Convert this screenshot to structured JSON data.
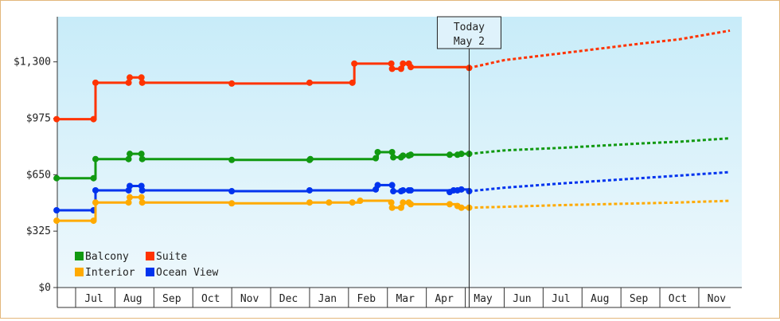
{
  "chart_data": {
    "type": "line",
    "today": {
      "line1": "Today",
      "line2": "May 2"
    },
    "y_ticks": [
      {
        "value": 0,
        "label": "$0"
      },
      {
        "value": 325,
        "label": "$325"
      },
      {
        "value": 650,
        "label": "$650"
      },
      {
        "value": 975,
        "label": "$975"
      },
      {
        "value": 1300,
        "label": "$1,300"
      }
    ],
    "ylim": [
      0,
      1560
    ],
    "x_months": [
      "Jul",
      "Aug",
      "Sep",
      "Oct",
      "Nov",
      "Dec",
      "Jan",
      "Feb",
      "Mar",
      "Apr",
      "May",
      "Jun",
      "Jul",
      "Aug",
      "Sep",
      "Oct",
      "Nov"
    ],
    "legend_placement": "bottom-left",
    "grid": false,
    "series": [
      {
        "name": "Suite",
        "color": "#ff3300",
        "points": [
          [
            -1,
            970
          ],
          [
            -0.05,
            970
          ],
          [
            0,
            1180
          ],
          [
            0.85,
            1180
          ],
          [
            0.88,
            1210
          ],
          [
            1.18,
            1210
          ],
          [
            1.2,
            1180
          ],
          [
            3.5,
            1175
          ],
          [
            5.5,
            1180
          ],
          [
            6.6,
            1180
          ],
          [
            6.65,
            1290
          ],
          [
            7.6,
            1290
          ],
          [
            7.62,
            1260
          ],
          [
            7.85,
            1260
          ],
          [
            7.9,
            1290
          ],
          [
            8.05,
            1290
          ],
          [
            8.1,
            1270
          ],
          [
            9.6,
            1265
          ]
        ],
        "forecast": [
          [
            9.6,
            1265
          ],
          [
            10.5,
            1310
          ],
          [
            12,
            1350
          ],
          [
            14,
            1405
          ],
          [
            15,
            1430
          ],
          [
            16.3,
            1480
          ]
        ]
      },
      {
        "name": "Balcony",
        "color": "#119911",
        "points": [
          [
            -1,
            630
          ],
          [
            -0.05,
            630
          ],
          [
            0,
            740
          ],
          [
            0.85,
            740
          ],
          [
            0.88,
            770
          ],
          [
            1.18,
            770
          ],
          [
            1.2,
            740
          ],
          [
            3.5,
            735
          ],
          [
            5.5,
            735
          ],
          [
            5.52,
            740
          ],
          [
            7.2,
            745
          ],
          [
            7.25,
            780
          ],
          [
            7.62,
            780
          ],
          [
            7.65,
            750
          ],
          [
            7.85,
            750
          ],
          [
            7.9,
            760
          ],
          [
            8.05,
            760
          ],
          [
            8.1,
            765
          ],
          [
            9.1,
            765
          ],
          [
            9.3,
            765
          ],
          [
            9.4,
            770
          ],
          [
            9.6,
            770
          ]
        ],
        "forecast": [
          [
            9.6,
            770
          ],
          [
            10.5,
            790
          ],
          [
            12,
            805
          ],
          [
            14,
            830
          ],
          [
            15,
            840
          ],
          [
            16.3,
            860
          ]
        ]
      },
      {
        "name": "Ocean View",
        "color": "#0033ee",
        "points": [
          [
            -1,
            445
          ],
          [
            -0.05,
            445
          ],
          [
            0,
            560
          ],
          [
            0.85,
            560
          ],
          [
            0.88,
            585
          ],
          [
            1.18,
            585
          ],
          [
            1.2,
            560
          ],
          [
            3.5,
            555
          ],
          [
            5.5,
            560
          ],
          [
            7.2,
            565
          ],
          [
            7.25,
            590
          ],
          [
            7.62,
            590
          ],
          [
            7.65,
            555
          ],
          [
            7.85,
            555
          ],
          [
            7.9,
            560
          ],
          [
            8.05,
            560
          ],
          [
            8.1,
            560
          ],
          [
            9.1,
            550
          ],
          [
            9.2,
            560
          ],
          [
            9.3,
            560
          ],
          [
            9.4,
            565
          ],
          [
            9.6,
            555
          ]
        ],
        "forecast": [
          [
            9.6,
            555
          ],
          [
            10.5,
            575
          ],
          [
            12,
            600
          ],
          [
            14,
            630
          ],
          [
            15,
            645
          ],
          [
            16.3,
            665
          ]
        ]
      },
      {
        "name": "Interior",
        "color": "#ffaa00",
        "points": [
          [
            -1,
            385
          ],
          [
            -0.05,
            385
          ],
          [
            0,
            490
          ],
          [
            0.85,
            490
          ],
          [
            0.88,
            520
          ],
          [
            1.18,
            520
          ],
          [
            1.2,
            490
          ],
          [
            3.5,
            485
          ],
          [
            5.5,
            490
          ],
          [
            6.0,
            490
          ],
          [
            6.6,
            490
          ],
          [
            6.8,
            500
          ],
          [
            7.6,
            490
          ],
          [
            7.62,
            460
          ],
          [
            7.85,
            460
          ],
          [
            7.9,
            490
          ],
          [
            8.05,
            490
          ],
          [
            8.1,
            480
          ],
          [
            9.1,
            480
          ],
          [
            9.3,
            470
          ],
          [
            9.4,
            460
          ],
          [
            9.6,
            460
          ]
        ],
        "forecast": [
          [
            9.6,
            460
          ],
          [
            10.5,
            465
          ],
          [
            12,
            475
          ],
          [
            14,
            485
          ],
          [
            15,
            490
          ],
          [
            16.3,
            500
          ]
        ]
      }
    ],
    "legend": [
      {
        "name": "Balcony",
        "color": "#119911"
      },
      {
        "name": "Suite",
        "color": "#ff3300"
      },
      {
        "name": "Interior",
        "color": "#ffaa00"
      },
      {
        "name": "Ocean View",
        "color": "#0033ee"
      }
    ]
  }
}
